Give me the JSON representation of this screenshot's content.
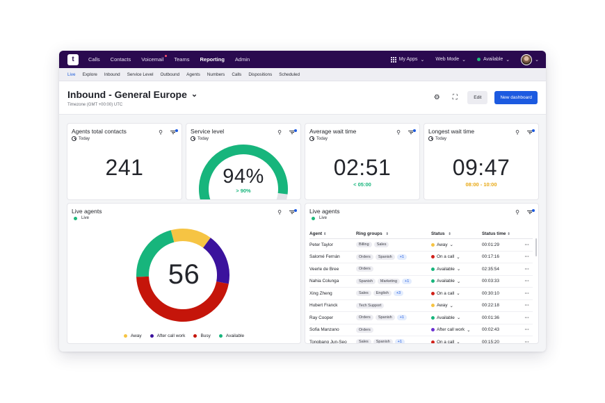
{
  "nav": {
    "logo": "t",
    "items": [
      {
        "label": "Calls"
      },
      {
        "label": "Contacts"
      },
      {
        "label": "Voicemail"
      },
      {
        "label": "Teams"
      },
      {
        "label": "Reporting"
      },
      {
        "label": "Admin"
      }
    ],
    "my_apps": "My Apps",
    "web_mode": "Web Mode",
    "availability": "Available"
  },
  "subnav": [
    "Live",
    "Explore",
    "Inbound",
    "Service Level",
    "Outbound",
    "Agents",
    "Numbers",
    "Calls",
    "Dispositions",
    "Scheduled"
  ],
  "header": {
    "title": "Inbound - General Europe",
    "timezone": "Timezone (GMT +00:00) UTC",
    "edit_label": "Edit",
    "new_dashboard_label": "New dashboard"
  },
  "widgets": {
    "contacts": {
      "title": "Agents total contacts",
      "period": "Today",
      "value": "241"
    },
    "service": {
      "title": "Service level",
      "period": "Today",
      "value": "94%",
      "target": "> 90%",
      "percent": 94
    },
    "wait": {
      "title": "Average wait time",
      "period": "Today",
      "value": "02:51",
      "target": "< 05:00"
    },
    "longest": {
      "title": "Longest wait time",
      "period": "Today",
      "value": "09:47",
      "target": "08:00 - 10:00"
    },
    "live_donut": {
      "title": "Live agents",
      "status": "Live",
      "total": "56",
      "legend": [
        {
          "label": "Away",
          "color": "#f6c443",
          "value": 8
        },
        {
          "label": "After call work",
          "color": "#3b129d",
          "value": 10
        },
        {
          "label": "Busy",
          "color": "#c5150a",
          "value": 26
        },
        {
          "label": "Available",
          "color": "#17b57c",
          "value": 12
        }
      ]
    },
    "live_table": {
      "title": "Live agents",
      "status": "Live",
      "columns": [
        "Agent",
        "Ring groups",
        "Status",
        "Status time"
      ],
      "rows": [
        {
          "agent": "Peter Taylor",
          "groups": [
            "Billing",
            "Sales"
          ],
          "more": "",
          "status": "Away",
          "color": "#f6c443",
          "time": "00:01:29"
        },
        {
          "agent": "Salomé Fernán",
          "groups": [
            "Orders",
            "Spanish"
          ],
          "more": "+1",
          "status": "On a call",
          "color": "#d0211a",
          "time": "00:17:16"
        },
        {
          "agent": "Veerle de Bree",
          "groups": [
            "Orders"
          ],
          "more": "",
          "status": "Available",
          "color": "#17b57c",
          "time": "02:35:54"
        },
        {
          "agent": "Nahia Colunga",
          "groups": [
            "Spanish",
            "Marketing"
          ],
          "more": "+1",
          "status": "Available",
          "color": "#17b57c",
          "time": "00:03:33"
        },
        {
          "agent": "Xing Zheng",
          "groups": [
            "Sales",
            "English"
          ],
          "more": "+3",
          "status": "On a call",
          "color": "#d0211a",
          "time": "00:30:10"
        },
        {
          "agent": "Hubert Franck",
          "groups": [
            "Tech Support"
          ],
          "more": "",
          "status": "Away",
          "color": "#f6c443",
          "time": "00:22:18"
        },
        {
          "agent": "Ray Cooper",
          "groups": [
            "Orders",
            "Spanish"
          ],
          "more": "+1",
          "status": "Available",
          "color": "#17b57c",
          "time": "00:01:36"
        },
        {
          "agent": "Sofia Manzano",
          "groups": [
            "Orders"
          ],
          "more": "",
          "status": "After call work",
          "color": "#6b2fd1",
          "time": "00:02:43"
        },
        {
          "agent": "Tongbang Jun-Seo",
          "groups": [
            "Sales",
            "Spanish"
          ],
          "more": "+1",
          "status": "On a call",
          "color": "#d0211a",
          "time": "00:15:20"
        }
      ]
    }
  },
  "colors": {
    "brand": "#2a0a4f",
    "accent": "#1c5ae0",
    "good": "#17b57c",
    "warn": "#e8a813"
  }
}
